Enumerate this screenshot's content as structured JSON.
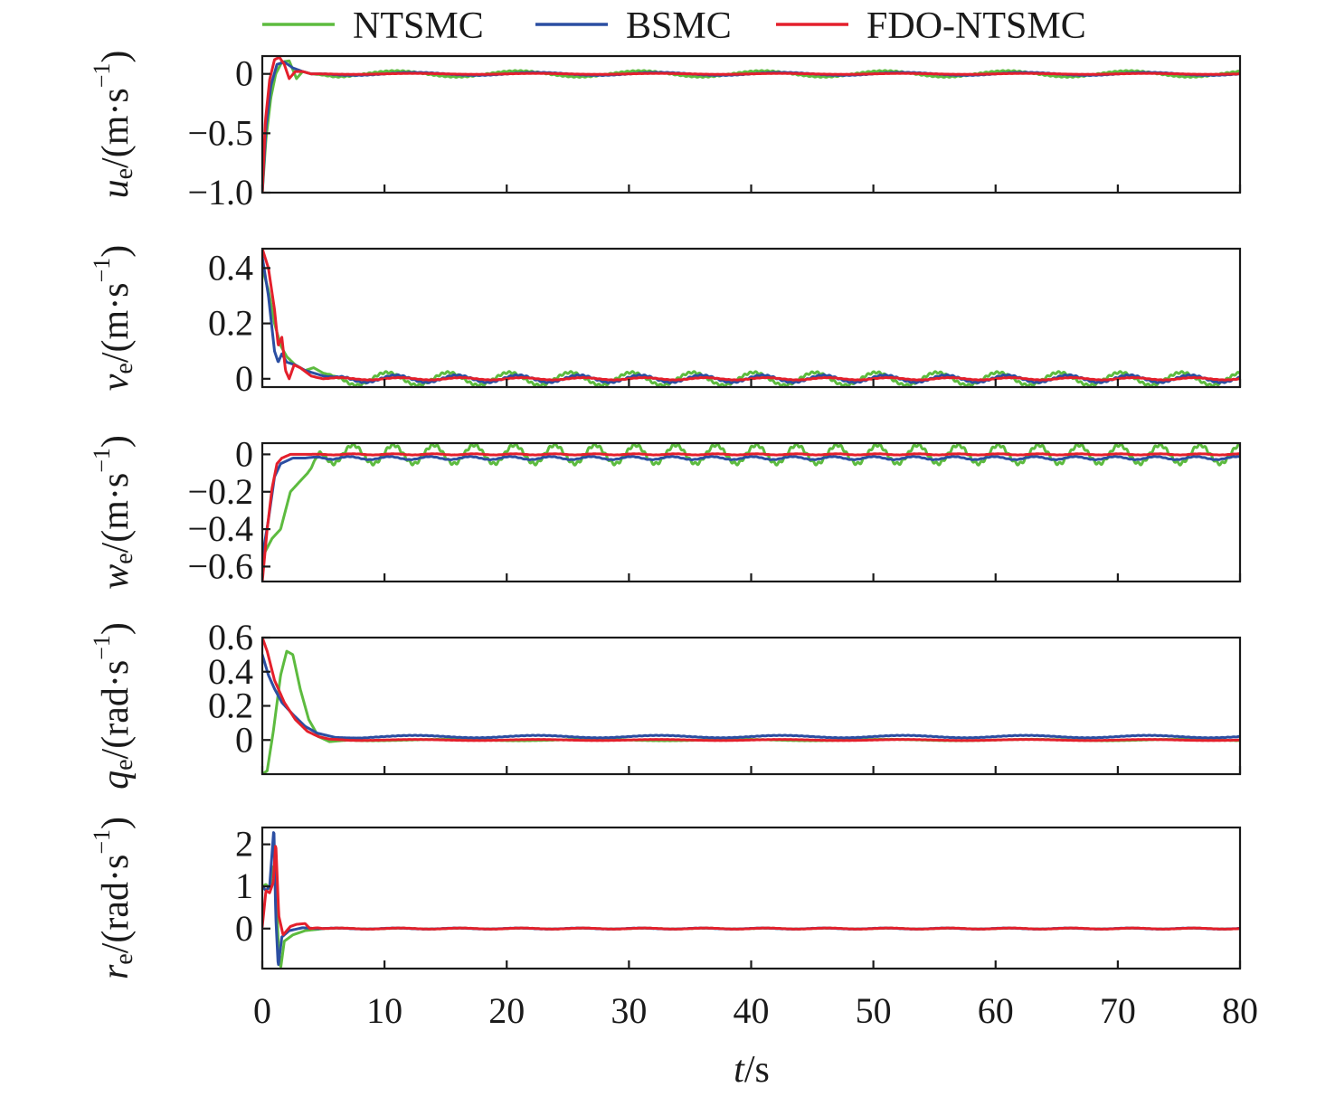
{
  "legend": [
    {
      "label": "NTSMC",
      "color": "#5dbb3f"
    },
    {
      "label": "BSMC",
      "color": "#2b4ea2"
    },
    {
      "label": "FDO-NTSMC",
      "color": "#e4202c"
    }
  ],
  "chart_data": {
    "type": "line",
    "layout": "5 stacked subplots sharing the time axis",
    "xlabel_var": "t",
    "xlabel_unit": "/s",
    "xlim": [
      0,
      80
    ],
    "xticks": [
      0,
      10,
      20,
      30,
      40,
      50,
      60,
      70,
      80
    ],
    "xtick_labels": [
      "0",
      "10",
      "20",
      "30",
      "40",
      "50",
      "60",
      "70",
      "80"
    ],
    "panels": [
      {
        "ylabel_var": "u",
        "ylabel_sub": "e",
        "ylabel_unit_main": "/(m·s",
        "ylabel_unit_sup": "−1",
        "ylabel_unit_close": ")",
        "ylim": [
          -1.0,
          0.15
        ],
        "yticks": [
          -1.0,
          -0.5,
          0
        ],
        "ytick_labels": [
          "−1.0",
          "−0.5",
          "0"
        ],
        "series": [
          {
            "name": "NTSMC",
            "osc": {
              "amp": 0.025,
              "period": 10,
              "phase": 1
            },
            "points": [
              [
                0,
                -1.0
              ],
              [
                0.3,
                -0.55
              ],
              [
                0.7,
                -0.2
              ],
              [
                1.1,
                0.0
              ],
              [
                1.6,
                0.1
              ],
              [
                2.2,
                0.11
              ],
              [
                2.8,
                -0.04
              ],
              [
                3.3,
                0.02
              ],
              [
                4,
                0.0
              ],
              [
                5,
                0
              ]
            ]
          },
          {
            "name": "BSMC",
            "osc": {
              "amp": 0.012,
              "period": 10,
              "phase": 0
            },
            "points": [
              [
                0,
                -1.0
              ],
              [
                0.3,
                -0.45
              ],
              [
                0.7,
                -0.1
              ],
              [
                1.2,
                0.08
              ],
              [
                1.8,
                0.1
              ],
              [
                2.5,
                0.05
              ],
              [
                3.3,
                0.02
              ],
              [
                4,
                0.0
              ],
              [
                5,
                0
              ]
            ]
          },
          {
            "name": "FDO-NTSMC",
            "osc": {
              "amp": 0.004,
              "period": 10,
              "phase": 0
            },
            "points": [
              [
                0,
                -1.0
              ],
              [
                0.25,
                -0.4
              ],
              [
                0.6,
                -0.05
              ],
              [
                1.0,
                0.12
              ],
              [
                1.4,
                0.14
              ],
              [
                1.8,
                0.08
              ],
              [
                2.2,
                -0.04
              ],
              [
                2.7,
                0.02
              ],
              [
                3.3,
                0.02
              ],
              [
                4,
                0.0
              ],
              [
                5,
                0
              ]
            ]
          }
        ]
      },
      {
        "ylabel_var": "v",
        "ylabel_sub": "e",
        "ylabel_unit_main": "/(m·s",
        "ylabel_unit_sup": "−1",
        "ylabel_unit_close": ")",
        "ylim": [
          -0.03,
          0.47
        ],
        "yticks": [
          0,
          0.2,
          0.4
        ],
        "ytick_labels": [
          "0",
          "0.2",
          "0.4"
        ],
        "series": [
          {
            "name": "NTSMC",
            "osc": {
              "amp": 0.023,
              "period": 5,
              "phase": 1.3
            },
            "points": [
              [
                0,
                0.4
              ],
              [
                0.5,
                0.32
              ],
              [
                1.0,
                0.2
              ],
              [
                1.5,
                0.12
              ],
              [
                2,
                0.08
              ],
              [
                2.7,
                0.05
              ],
              [
                3.5,
                0.03
              ],
              [
                4.2,
                0.04
              ],
              [
                5,
                0.02
              ],
              [
                6,
                0
              ]
            ]
          },
          {
            "name": "BSMC",
            "osc": {
              "amp": 0.013,
              "period": 5,
              "phase": 0.4
            },
            "points": [
              [
                0,
                0.44
              ],
              [
                0.5,
                0.3
              ],
              [
                1.0,
                0.1
              ],
              [
                1.3,
                0.06
              ],
              [
                1.6,
                0.09
              ],
              [
                2.0,
                0.06
              ],
              [
                2.7,
                0.05
              ],
              [
                3.5,
                0.03
              ],
              [
                5,
                0.01
              ],
              [
                6,
                0
              ]
            ]
          },
          {
            "name": "FDO-NTSMC",
            "osc": {
              "amp": 0.004,
              "period": 5,
              "phase": 0
            },
            "points": [
              [
                0,
                0.47
              ],
              [
                0.5,
                0.4
              ],
              [
                1.0,
                0.25
              ],
              [
                1.3,
                0.12
              ],
              [
                1.6,
                0.15
              ],
              [
                1.9,
                0.03
              ],
              [
                2.2,
                0.0
              ],
              [
                2.6,
                0.05
              ],
              [
                3.1,
                0.04
              ],
              [
                4,
                0.01
              ],
              [
                5,
                0
              ]
            ]
          }
        ]
      },
      {
        "ylabel_var": "w",
        "ylabel_sub": "e",
        "ylabel_unit_main": "/(m·s",
        "ylabel_unit_sup": "−1",
        "ylabel_unit_close": ")",
        "ylim": [
          -0.68,
          0.06
        ],
        "yticks": [
          -0.6,
          -0.4,
          -0.2,
          0
        ],
        "ytick_labels": [
          "−0.6",
          "−0.4",
          "−0.2",
          "0"
        ],
        "series": [
          {
            "name": "NTSMC",
            "osc": {
              "amp": 0.05,
              "period": 3.3,
              "phase": 0,
              "offset": 0
            },
            "points": [
              [
                0,
                -0.55
              ],
              [
                0.8,
                -0.45
              ],
              [
                1.5,
                -0.4
              ],
              [
                2.3,
                -0.2
              ],
              [
                3,
                -0.15
              ],
              [
                4,
                -0.08
              ],
              [
                4.7,
                0.0
              ]
            ]
          },
          {
            "name": "BSMC",
            "osc": {
              "amp": 0.008,
              "period": 3.3,
              "phase": 0.6,
              "offset": -0.01
            },
            "points": [
              [
                0,
                -0.55
              ],
              [
                0.5,
                -0.35
              ],
              [
                1.0,
                -0.12
              ],
              [
                1.5,
                -0.05
              ],
              [
                2.5,
                -0.02
              ],
              [
                3.5,
                -0.02
              ],
              [
                4.7,
                -0.01
              ]
            ]
          },
          {
            "name": "FDO-NTSMC",
            "osc": {
              "amp": 0.003,
              "period": 3.3,
              "phase": 0,
              "offset": 0
            },
            "points": [
              [
                0,
                -0.68
              ],
              [
                0.4,
                -0.4
              ],
              [
                0.8,
                -0.18
              ],
              [
                1.2,
                -0.05
              ],
              [
                1.6,
                -0.02
              ],
              [
                2.3,
                0.0
              ],
              [
                3.5,
                0.0
              ],
              [
                4.7,
                0
              ]
            ]
          }
        ]
      },
      {
        "ylabel_var": "q",
        "ylabel_sub": "e",
        "ylabel_unit_main": "/(rad·s",
        "ylabel_unit_sup": "−1",
        "ylabel_unit_close": ")",
        "ylim": [
          -0.2,
          0.6
        ],
        "yticks": [
          0,
          0.2,
          0.4,
          0.6
        ],
        "ytick_labels": [
          "0",
          "0.2",
          "0.4",
          "0.6"
        ],
        "series": [
          {
            "name": "NTSMC",
            "osc": {
              "amp": 0.004,
              "period": 12,
              "phase": 0
            },
            "points": [
              [
                0,
                -0.2
              ],
              [
                0.4,
                -0.18
              ],
              [
                0.9,
                0.05
              ],
              [
                1.5,
                0.38
              ],
              [
                2.0,
                0.52
              ],
              [
                2.5,
                0.5
              ],
              [
                3.1,
                0.3
              ],
              [
                3.8,
                0.12
              ],
              [
                4.6,
                0.02
              ],
              [
                5.5,
                -0.01
              ],
              [
                7,
                0
              ]
            ]
          },
          {
            "name": "BSMC",
            "osc": {
              "amp": 0.007,
              "period": 10,
              "phase": 0,
              "offset": 0.01
            },
            "points": [
              [
                0,
                0.5
              ],
              [
                0.5,
                0.38
              ],
              [
                1.0,
                0.3
              ],
              [
                1.6,
                0.22
              ],
              [
                2.5,
                0.15
              ],
              [
                3.5,
                0.08
              ],
              [
                4.5,
                0.04
              ],
              [
                6,
                0.015
              ],
              [
                8,
                0.01
              ]
            ]
          },
          {
            "name": "FDO-NTSMC",
            "osc": {
              "amp": 0.003,
              "period": 10,
              "phase": 0
            },
            "points": [
              [
                0,
                0.6
              ],
              [
                0.4,
                0.52
              ],
              [
                1.0,
                0.35
              ],
              [
                1.8,
                0.22
              ],
              [
                2.7,
                0.12
              ],
              [
                3.7,
                0.05
              ],
              [
                4.6,
                0.02
              ],
              [
                5.5,
                0.005
              ],
              [
                7,
                0
              ]
            ]
          }
        ]
      },
      {
        "ylabel_var": "r",
        "ylabel_sub": "e",
        "ylabel_unit_main": "/(rad·s",
        "ylabel_unit_sup": "−1",
        "ylabel_unit_close": ")",
        "ylim": [
          -0.95,
          2.4
        ],
        "yticks": [
          0,
          1,
          2
        ],
        "ytick_labels": [
          "0",
          "1",
          "2"
        ],
        "series": [
          {
            "name": "NTSMC",
            "osc": {
              "amp": 0.01,
              "period": 5,
              "phase": 0
            },
            "points": [
              [
                0,
                1.0
              ],
              [
                0.3,
                1.05
              ],
              [
                0.6,
                0.95
              ],
              [
                0.9,
                1.5
              ],
              [
                1.1,
                1.2
              ],
              [
                1.3,
                -0.3
              ],
              [
                1.5,
                -0.95
              ],
              [
                1.8,
                -0.3
              ],
              [
                2.5,
                -0.15
              ],
              [
                3.5,
                -0.05
              ],
              [
                5,
                0
              ]
            ]
          },
          {
            "name": "BSMC",
            "osc": {
              "amp": 0.012,
              "period": 5,
              "phase": 0.4
            },
            "points": [
              [
                0,
                1.0
              ],
              [
                0.3,
                0.9
              ],
              [
                0.6,
                1.0
              ],
              [
                0.95,
                2.4
              ],
              [
                1.1,
                0.3
              ],
              [
                1.3,
                -0.9
              ],
              [
                1.6,
                -0.2
              ],
              [
                2.2,
                -0.05
              ],
              [
                3.3,
                0.02
              ],
              [
                4.5,
                0.0
              ],
              [
                5,
                0
              ]
            ]
          },
          {
            "name": "FDO-NTSMC",
            "osc": {
              "amp": 0.012,
              "period": 5,
              "phase": 0
            },
            "points": [
              [
                0,
                0.05
              ],
              [
                0.3,
                0.9
              ],
              [
                0.6,
                0.85
              ],
              [
                0.9,
                1.1
              ],
              [
                1.1,
                2.05
              ],
              [
                1.35,
                0.3
              ],
              [
                1.7,
                -0.15
              ],
              [
                2.3,
                0.05
              ],
              [
                2.8,
                0.1
              ],
              [
                3.5,
                0.12
              ],
              [
                3.9,
                0.0
              ],
              [
                4.5,
                0.02
              ],
              [
                5,
                0
              ]
            ]
          }
        ]
      }
    ]
  }
}
